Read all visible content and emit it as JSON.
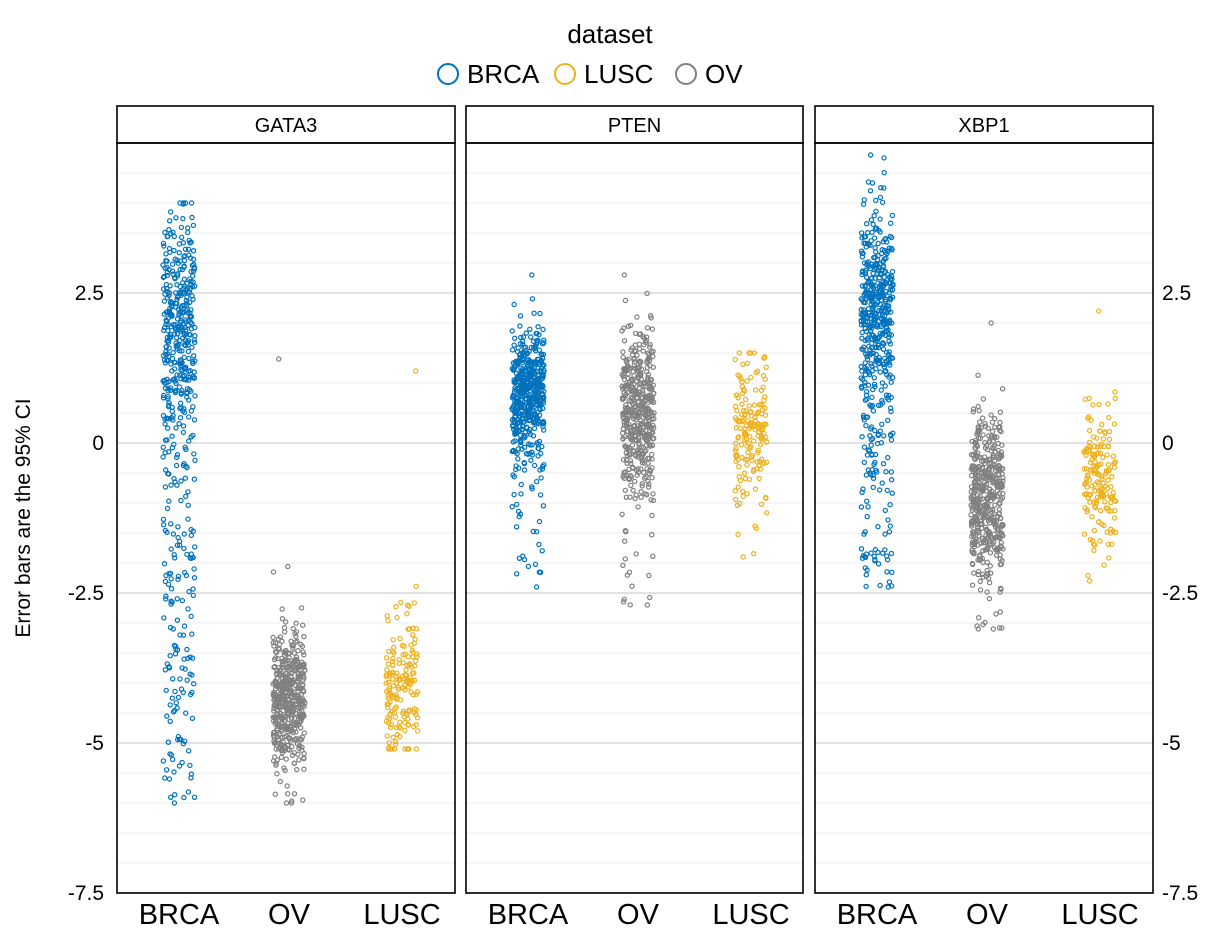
{
  "chart_data": {
    "type": "scatter",
    "ylabel": "Error bars are the 95% CI",
    "ylim": [
      -7.5,
      5
    ],
    "yticks": [
      -7.5,
      -5,
      -2.5,
      0,
      2.5
    ],
    "ytick_labels": [
      "-7.5",
      "-5",
      "-2.5",
      "0",
      "2.5"
    ],
    "legend": {
      "title": "dataset",
      "position": "top",
      "entries": [
        {
          "name": "BRCA",
          "color": "#0072BD"
        },
        {
          "name": "LUSC",
          "color": "#EDB120"
        },
        {
          "name": "OV",
          "color": "#808080"
        }
      ]
    },
    "categories": [
      "BRCA",
      "OV",
      "LUSC"
    ],
    "panels": [
      {
        "title": "GATA3",
        "groups": [
          {
            "category": "BRCA",
            "n": 520,
            "center": 2.0,
            "spread": 0.9,
            "min": -6.0,
            "max": 4.0,
            "lower_tail": 0.35
          },
          {
            "category": "OV",
            "n": 460,
            "center": -4.2,
            "spread": 0.55,
            "min": -6.0,
            "max": 1.4,
            "lower_tail": 0.02
          },
          {
            "category": "LUSC",
            "n": 170,
            "center": -4.0,
            "spread": 0.6,
            "min": -5.1,
            "max": 1.2,
            "lower_tail": 0.02
          }
        ]
      },
      {
        "title": "PTEN",
        "groups": [
          {
            "category": "BRCA",
            "n": 520,
            "center": 0.8,
            "spread": 0.55,
            "min": -2.4,
            "max": 2.8,
            "lower_tail": 0.08
          },
          {
            "category": "OV",
            "n": 460,
            "center": 0.6,
            "spread": 0.65,
            "min": -2.7,
            "max": 2.8,
            "lower_tail": 0.08
          },
          {
            "category": "LUSC",
            "n": 170,
            "center": 0.3,
            "spread": 0.6,
            "min": -1.9,
            "max": 1.5,
            "lower_tail": 0.05
          }
        ]
      },
      {
        "title": "XBP1",
        "groups": [
          {
            "category": "BRCA",
            "n": 520,
            "center": 2.3,
            "spread": 0.8,
            "min": -2.4,
            "max": 4.8,
            "lower_tail": 0.25
          },
          {
            "category": "OV",
            "n": 460,
            "center": -0.9,
            "spread": 0.7,
            "min": -3.1,
            "max": 2.0,
            "lower_tail": 0.03
          },
          {
            "category": "LUSC",
            "n": 170,
            "center": -0.6,
            "spread": 0.55,
            "min": -2.3,
            "max": 2.2,
            "lower_tail": 0.03
          }
        ]
      }
    ]
  }
}
